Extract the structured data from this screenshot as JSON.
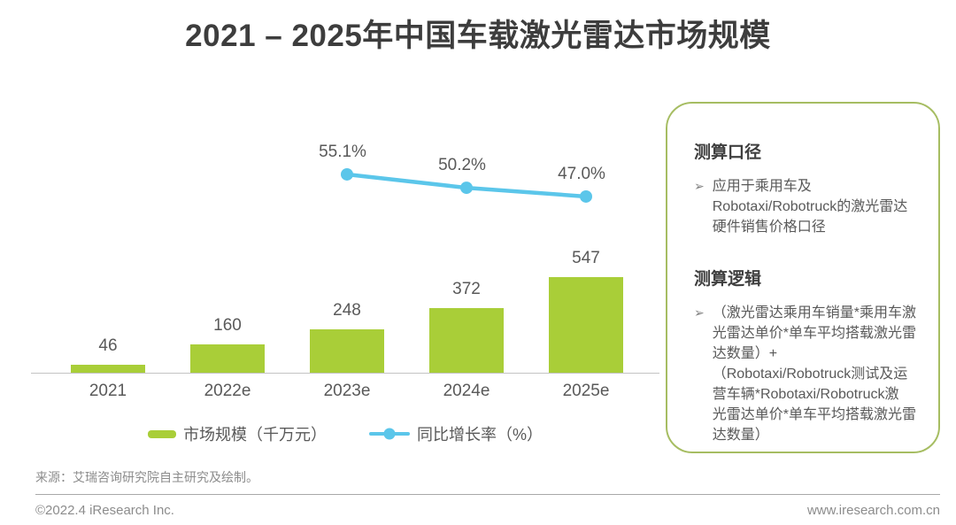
{
  "title": "2021 – 2025年中国车载激光雷达市场规模",
  "chart_data": {
    "type": "bar",
    "combo": "bar+line",
    "categories": [
      "2021",
      "2022e",
      "2023e",
      "2024e",
      "2025e"
    ],
    "series": [
      {
        "name": "市场规模（千万元）",
        "type": "bar",
        "values": [
          46,
          160,
          248,
          372,
          547
        ],
        "labels": [
          "46",
          "160",
          "248",
          "372",
          "547"
        ]
      },
      {
        "name": "同比增长率（%）",
        "type": "line",
        "values": [
          null,
          null,
          55.1,
          50.2,
          47.0
        ],
        "labels": [
          null,
          null,
          "55.1%",
          "50.2%",
          "47.0%"
        ]
      }
    ],
    "title": "2021 – 2025年中国车载激光雷达市场规模",
    "xlabel": "",
    "ylabel": "",
    "ylim": [
      0,
      600
    ],
    "grid": false,
    "legend_position": "bottom",
    "data_labels": true
  },
  "colors": {
    "bar": "#a9ce38",
    "line": "#5bc6ea",
    "box_border": "#a6bd62",
    "axis": "#c3c3c3",
    "text_dark": "#3d3d3d",
    "text_gray": "#595959",
    "text_light": "#8c8c8c"
  },
  "legend": [
    {
      "label": "市场规模（千万元）",
      "color": "#a9ce38",
      "type": "bar"
    },
    {
      "label": "同比增长率（%）",
      "color": "#5bc6ea",
      "type": "line"
    }
  ],
  "sidebar": {
    "sections": [
      {
        "heading": "测算口径",
        "bullets": [
          "应用于乘用车及\nRobotaxi/Robotruck的激光雷达\n硬件销售价格口径"
        ]
      },
      {
        "heading": "测算逻辑",
        "bullets": [
          "（激光雷达乘用车销量*乘用车激\n光雷达单价*单车平均搭载激光雷\n达数量）+\n（Robotaxi/Robotruck测试及运\n营车辆*Robotaxi/Robotruck激\n光雷达单价*单车平均搭载激光雷\n达数量）"
        ]
      }
    ]
  },
  "source": "来源：艾瑞咨询研究院自主研究及绘制。",
  "footer": {
    "copyright": "©2022.4 iResearch Inc.",
    "website": "www.iresearch.com.cn"
  }
}
